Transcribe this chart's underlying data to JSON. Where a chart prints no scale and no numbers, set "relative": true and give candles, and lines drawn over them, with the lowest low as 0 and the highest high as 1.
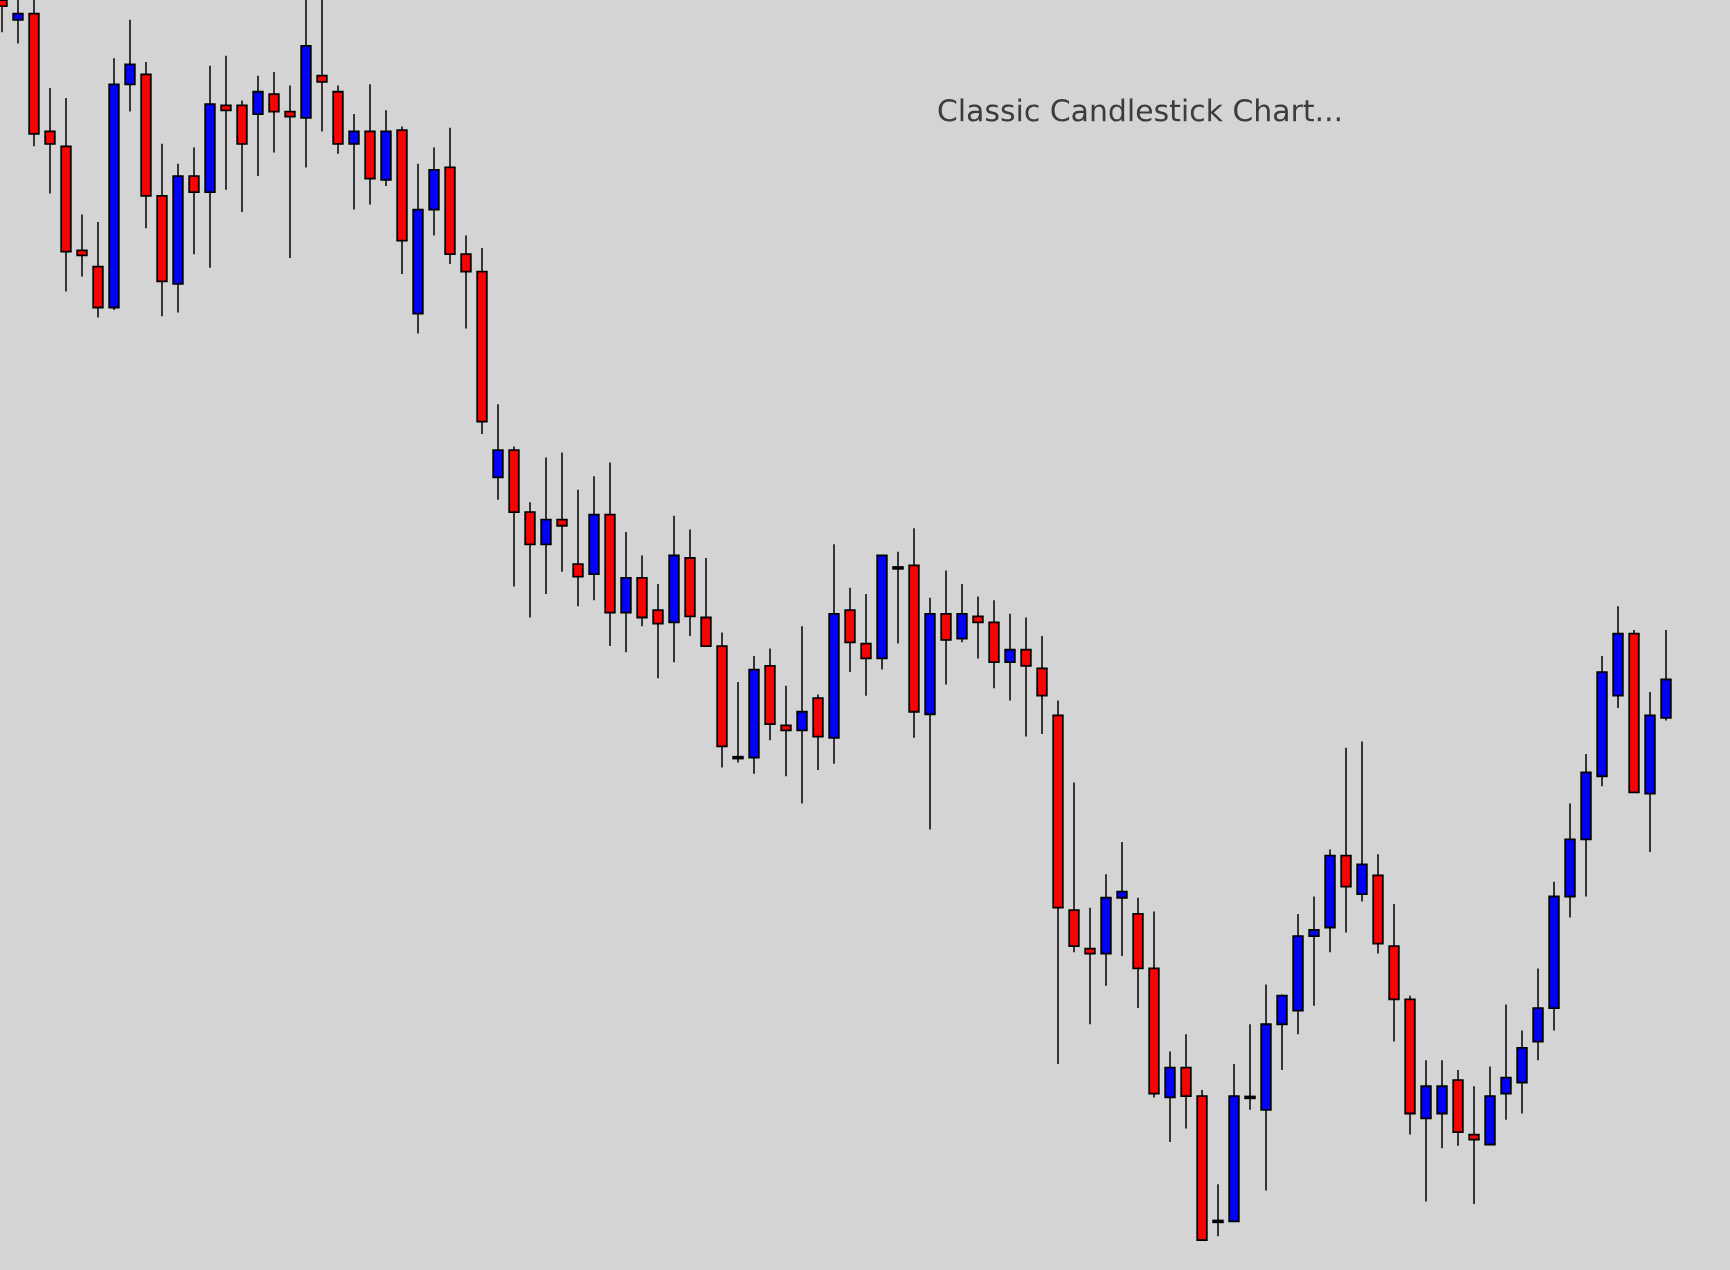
{
  "chart_data": {
    "type": "candlestick",
    "title": "Classic Candlestick Chart...",
    "relative": true,
    "categories": [
      null,
      null,
      null,
      null,
      null,
      null,
      null,
      null,
      null,
      null,
      null,
      null,
      null,
      null,
      null,
      null,
      null,
      null,
      null,
      null,
      null,
      null,
      null,
      null,
      null,
      null,
      null,
      null,
      null,
      null,
      null,
      null,
      null,
      null,
      null,
      null,
      null,
      null,
      null,
      null,
      null,
      null,
      null,
      null,
      null,
      null,
      null,
      null,
      null,
      null,
      null,
      null,
      null,
      null,
      null,
      null,
      null,
      null,
      null,
      null,
      null,
      null,
      null,
      null,
      null,
      null,
      null,
      null,
      null,
      null,
      null,
      null,
      null,
      null,
      null,
      null,
      null,
      null,
      null,
      null,
      null,
      null,
      null,
      null,
      null,
      null,
      null,
      null,
      null,
      null,
      null,
      null,
      null,
      null,
      null,
      null,
      null,
      null,
      null,
      null,
      null,
      null,
      null,
      null,
      null
    ],
    "ohlc": [
      [
        1,
        1,
        0.974,
        0.995
      ],
      [
        0.984,
        1,
        0.965,
        0.989
      ],
      [
        0.989,
        1,
        0.882,
        0.892
      ],
      [
        0.894,
        0.929,
        0.844,
        0.884
      ],
      [
        0.882,
        0.921,
        0.765,
        0.797
      ],
      [
        0.798,
        0.827,
        0.777,
        0.794
      ],
      [
        0.785,
        0.821,
        0.744,
        0.752
      ],
      [
        0.752,
        0.953,
        0.75,
        0.932
      ],
      [
        0.932,
        0.984,
        0.91,
        0.948
      ],
      [
        0.94,
        0.95,
        0.816,
        0.842
      ],
      [
        0.842,
        0.884,
        0.745,
        0.773
      ],
      [
        0.771,
        0.868,
        0.748,
        0.858
      ],
      [
        0.858,
        0.881,
        0.795,
        0.845
      ],
      [
        0.845,
        0.947,
        0.784,
        0.916
      ],
      [
        0.915,
        0.955,
        0.847,
        0.911
      ],
      [
        0.915,
        0.919,
        0.829,
        0.884
      ],
      [
        0.908,
        0.939,
        0.858,
        0.926
      ],
      [
        0.924,
        0.942,
        0.877,
        0.91
      ],
      [
        0.91,
        0.931,
        0.792,
        0.906
      ],
      [
        0.905,
        1,
        0.865,
        0.963
      ],
      [
        0.939,
        1,
        0.894,
        0.934
      ],
      [
        0.926,
        0.931,
        0.876,
        0.884
      ],
      [
        0.884,
        0.908,
        0.831,
        0.894
      ],
      [
        0.894,
        0.932,
        0.835,
        0.856
      ],
      [
        0.855,
        0.911,
        0.85,
        0.894
      ],
      [
        0.895,
        0.898,
        0.779,
        0.806
      ],
      [
        0.747,
        0.868,
        0.731,
        0.831
      ],
      [
        0.831,
        0.881,
        0.81,
        0.863
      ],
      [
        0.865,
        0.897,
        0.787,
        0.795
      ],
      [
        0.795,
        0.81,
        0.735,
        0.781
      ],
      [
        0.781,
        0.8,
        0.65,
        0.66
      ],
      [
        0.615,
        0.674,
        0.597,
        0.637
      ],
      [
        0.637,
        0.64,
        0.527,
        0.587
      ],
      [
        0.587,
        0.595,
        0.502,
        0.561
      ],
      [
        0.561,
        0.631,
        0.521,
        0.581
      ],
      [
        0.581,
        0.635,
        0.539,
        0.576
      ],
      [
        0.545,
        0.605,
        0.511,
        0.535
      ],
      [
        0.537,
        0.616,
        0.516,
        0.585
      ],
      [
        0.585,
        0.627,
        0.479,
        0.506
      ],
      [
        0.506,
        0.571,
        0.474,
        0.534
      ],
      [
        0.534,
        0.552,
        0.495,
        0.502
      ],
      [
        0.508,
        0.529,
        0.453,
        0.497
      ],
      [
        0.498,
        0.584,
        0.466,
        0.552
      ],
      [
        0.55,
        0.573,
        0.487,
        0.503
      ],
      [
        0.502,
        0.55,
        0.479,
        0.479
      ],
      [
        0.479,
        0.49,
        0.381,
        0.398
      ],
      [
        0.389,
        0.45,
        0.385,
        0.389
      ],
      [
        0.389,
        0.471,
        0.376,
        0.46
      ],
      [
        0.463,
        0.477,
        0.403,
        0.416
      ],
      [
        0.415,
        0.447,
        0.374,
        0.411
      ],
      [
        0.411,
        0.495,
        0.352,
        0.426
      ],
      [
        0.437,
        0.44,
        0.379,
        0.406
      ],
      [
        0.405,
        0.561,
        0.384,
        0.505
      ],
      [
        0.508,
        0.526,
        0.458,
        0.482
      ],
      [
        0.481,
        0.521,
        0.439,
        0.469
      ],
      [
        0.469,
        0.552,
        0.46,
        0.552
      ],
      [
        0.542,
        0.555,
        0.481,
        0.542
      ],
      [
        0.544,
        0.574,
        0.405,
        0.426
      ],
      [
        0.424,
        0.518,
        0.331,
        0.505
      ],
      [
        0.505,
        0.54,
        0.448,
        0.484
      ],
      [
        0.485,
        0.529,
        0.482,
        0.505
      ],
      [
        0.503,
        0.519,
        0.469,
        0.498
      ],
      [
        0.498,
        0.516,
        0.445,
        0.466
      ],
      [
        0.466,
        0.505,
        0.435,
        0.476
      ],
      [
        0.476,
        0.502,
        0.406,
        0.463
      ],
      [
        0.461,
        0.487,
        0.408,
        0.439
      ],
      [
        0.423,
        0.435,
        0.142,
        0.268
      ],
      [
        0.266,
        0.369,
        0.232,
        0.237
      ],
      [
        0.235,
        0.268,
        0.174,
        0.231
      ],
      [
        0.231,
        0.295,
        0.205,
        0.276
      ],
      [
        0.276,
        0.321,
        0.229,
        0.281
      ],
      [
        0.263,
        0.276,
        0.187,
        0.219
      ],
      [
        0.219,
        0.265,
        0.115,
        0.118
      ],
      [
        0.115,
        0.152,
        0.079,
        0.139
      ],
      [
        0.139,
        0.166,
        0.09,
        0.116
      ],
      [
        0.116,
        0.121,
        0,
        0
      ],
      [
        0.015,
        0.045,
        0.003,
        0.015
      ],
      [
        0.015,
        0.142,
        0.015,
        0.116
      ],
      [
        0.115,
        0.174,
        0.105,
        0.115
      ],
      [
        0.105,
        0.206,
        0.04,
        0.174
      ],
      [
        0.174,
        0.198,
        0.137,
        0.197
      ],
      [
        0.185,
        0.263,
        0.166,
        0.245
      ],
      [
        0.245,
        0.277,
        0.189,
        0.25
      ],
      [
        0.252,
        0.315,
        0.232,
        0.31
      ],
      [
        0.31,
        0.397,
        0.248,
        0.285
      ],
      [
        0.279,
        0.402,
        0.273,
        0.303
      ],
      [
        0.294,
        0.311,
        0.231,
        0.239
      ],
      [
        0.237,
        0.271,
        0.16,
        0.194
      ],
      [
        0.194,
        0.197,
        0.085,
        0.102
      ],
      [
        0.098,
        0.145,
        0.031,
        0.124
      ],
      [
        0.102,
        0.145,
        0.074,
        0.124
      ],
      [
        0.129,
        0.137,
        0.076,
        0.087
      ],
      [
        0.085,
        0.124,
        0.029,
        0.081
      ],
      [
        0.077,
        0.14,
        0.077,
        0.116
      ],
      [
        0.118,
        0.19,
        0.097,
        0.131
      ],
      [
        0.127,
        0.169,
        0.102,
        0.155
      ],
      [
        0.16,
        0.219,
        0.145,
        0.187
      ],
      [
        0.187,
        0.289,
        0.169,
        0.277
      ],
      [
        0.277,
        0.352,
        0.26,
        0.323
      ],
      [
        0.323,
        0.392,
        0.277,
        0.377
      ],
      [
        0.374,
        0.471,
        0.366,
        0.458
      ],
      [
        0.439,
        0.511,
        0.429,
        0.489
      ],
      [
        0.489,
        0.492,
        0.361,
        0.361
      ],
      [
        0.36,
        0.442,
        0.313,
        0.423
      ],
      [
        0.421,
        0.492,
        0.419,
        0.452
      ]
    ],
    "colors": [
      "#ff0000",
      "#0000ff",
      "#ff0000",
      "#ff0000",
      "#ff0000",
      "#ff0000",
      "#ff0000",
      "#0000ff",
      "#0000ff",
      "#ff0000",
      "#ff0000",
      "#0000ff",
      "#ff0000",
      "#0000ff",
      "#ff0000",
      "#ff0000",
      "#0000ff",
      "#ff0000",
      "#ff0000",
      "#0000ff",
      "#ff0000",
      "#ff0000",
      "#0000ff",
      "#ff0000",
      "#0000ff",
      "#ff0000",
      "#0000ff",
      "#0000ff",
      "#ff0000",
      "#ff0000",
      "#ff0000",
      "#0000ff",
      "#ff0000",
      "#ff0000",
      "#0000ff",
      "#ff0000",
      "#ff0000",
      "#0000ff",
      "#ff0000",
      "#0000ff",
      "#ff0000",
      "#ff0000",
      "#0000ff",
      "#ff0000",
      "#ff0000",
      "#ff0000",
      "#000000",
      "#0000ff",
      "#ff0000",
      "#ff0000",
      "#0000ff",
      "#ff0000",
      "#0000ff",
      "#ff0000",
      "#ff0000",
      "#0000ff",
      "#000000",
      "#ff0000",
      "#0000ff",
      "#ff0000",
      "#0000ff",
      "#ff0000",
      "#ff0000",
      "#0000ff",
      "#ff0000",
      "#ff0000",
      "#ff0000",
      "#ff0000",
      "#ff0000",
      "#0000ff",
      "#0000ff",
      "#ff0000",
      "#ff0000",
      "#0000ff",
      "#ff0000",
      "#ff0000",
      "#000000",
      "#0000ff",
      "#000000",
      "#0000ff",
      "#0000ff",
      "#0000ff",
      "#0000ff",
      "#0000ff",
      "#ff0000",
      "#0000ff",
      "#ff0000",
      "#ff0000",
      "#ff0000",
      "#0000ff",
      "#0000ff",
      "#ff0000",
      "#ff0000",
      "#0000ff",
      "#0000ff",
      "#0000ff",
      "#0000ff",
      "#0000ff",
      "#0000ff",
      "#0000ff",
      "#0000ff",
      "#0000ff",
      "#ff0000",
      "#0000ff",
      "#0000ff"
    ]
  }
}
